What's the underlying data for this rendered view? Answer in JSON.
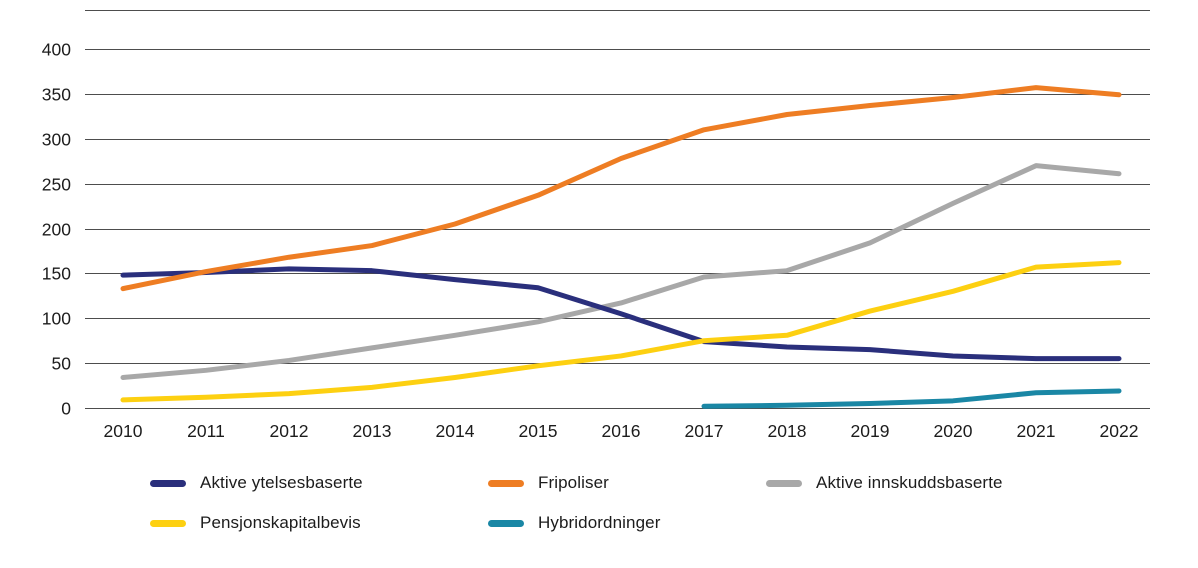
{
  "chart_data": {
    "type": "line",
    "title": "",
    "xlabel": "",
    "ylabel": "",
    "x": [
      "2010",
      "2011",
      "2012",
      "2013",
      "2014",
      "2015",
      "2016",
      "2017",
      "2018",
      "2019",
      "2020",
      "2021",
      "2022"
    ],
    "ylim": [
      0,
      400
    ],
    "yticks": [
      400,
      350,
      300,
      250,
      200,
      150,
      100,
      50,
      0
    ],
    "grid": "horizontal",
    "legend_position": "bottom",
    "series": [
      {
        "name": "Aktive ytelsesbaserte",
        "color": "#2a2f7c",
        "values": [
          148,
          151,
          155,
          153,
          143,
          134,
          105,
          74,
          68,
          65,
          58,
          55,
          55
        ]
      },
      {
        "name": "Fripoliser",
        "color": "#ee7d23",
        "values": [
          133,
          152,
          168,
          181,
          205,
          237,
          278,
          310,
          327,
          337,
          346,
          357,
          349
        ]
      },
      {
        "name": "Aktive innskuddsbaserte",
        "color": "#a8a8a8",
        "values": [
          34,
          42,
          53,
          67,
          81,
          96,
          117,
          146,
          153,
          184,
          228,
          270,
          261
        ]
      },
      {
        "name": "Pensjonskapitalbevis",
        "color": "#fdd011",
        "values": [
          9,
          12,
          16,
          23,
          34,
          47,
          58,
          75,
          81,
          108,
          130,
          157,
          162
        ]
      },
      {
        "name": "Hybridordninger",
        "color": "#1a87a5",
        "values": [
          null,
          null,
          null,
          null,
          null,
          null,
          null,
          2,
          3,
          5,
          8,
          17,
          19
        ]
      }
    ]
  },
  "legend": {
    "items": [
      {
        "label": "Aktive ytelsesbaserte"
      },
      {
        "label": "Fripoliser"
      },
      {
        "label": "Aktive innskuddsbaserte"
      },
      {
        "label": "Pensjonskapitalbevis"
      },
      {
        "label": "Hybridordninger"
      }
    ]
  },
  "colors": {
    "axis_text": "#1c1c1c",
    "gridline": "#4d4d4d",
    "background": "#ffffff"
  }
}
